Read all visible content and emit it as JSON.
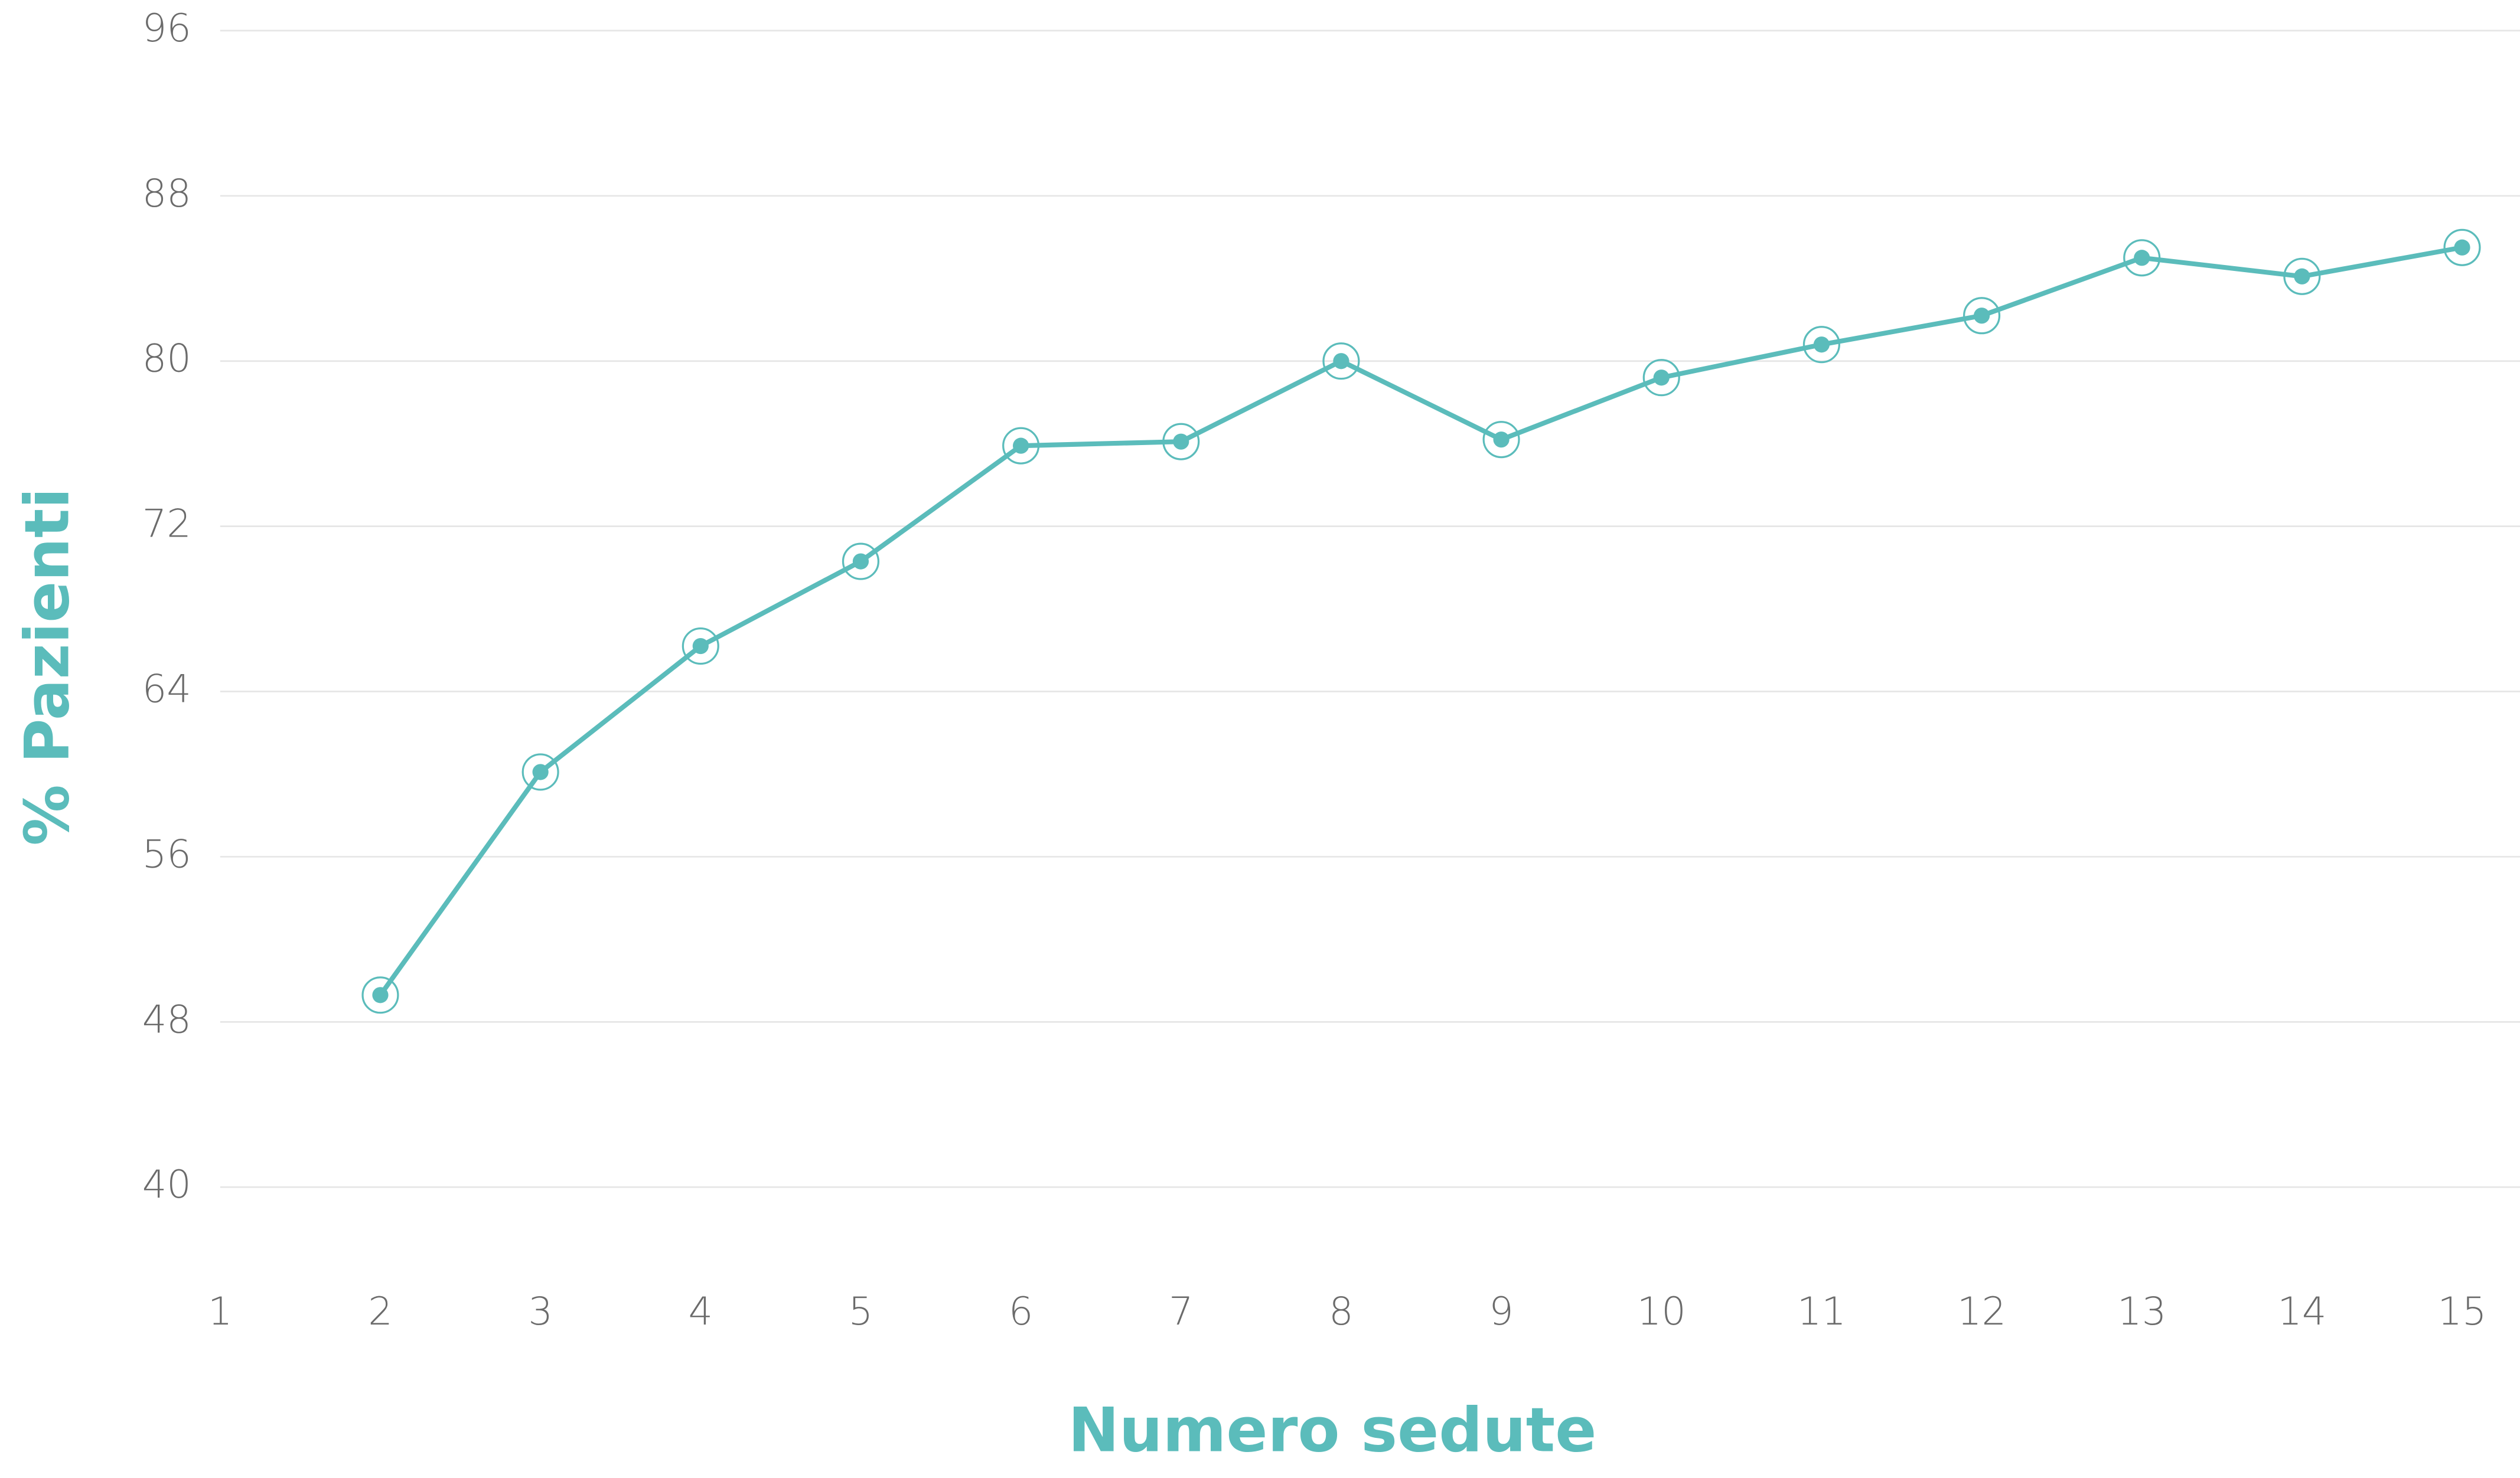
{
  "chart_data": {
    "type": "line",
    "x_label": "Numero sedute",
    "y_label": "% Pazienti",
    "x": [
      2,
      3,
      4,
      5,
      6,
      7,
      8,
      9,
      10,
      11,
      12,
      13,
      14,
      15
    ],
    "series": [
      {
        "color": "#5bbcbb",
        "values": [
          49.3,
          60.1,
          66.2,
          70.3,
          75.9,
          76.1,
          80.0,
          76.2,
          79.2,
          80.8,
          82.2,
          85.0,
          84.1,
          85.5
        ]
      }
    ],
    "xlim": [
      1,
      15
    ],
    "xticks": [
      1,
      2,
      3,
      4,
      5,
      6,
      7,
      8,
      9,
      10,
      11,
      12,
      13,
      14,
      15
    ],
    "ylim": [
      40,
      96
    ],
    "yticks": [
      40,
      48,
      56,
      64,
      72,
      80,
      88,
      96
    ],
    "grid": true
  }
}
